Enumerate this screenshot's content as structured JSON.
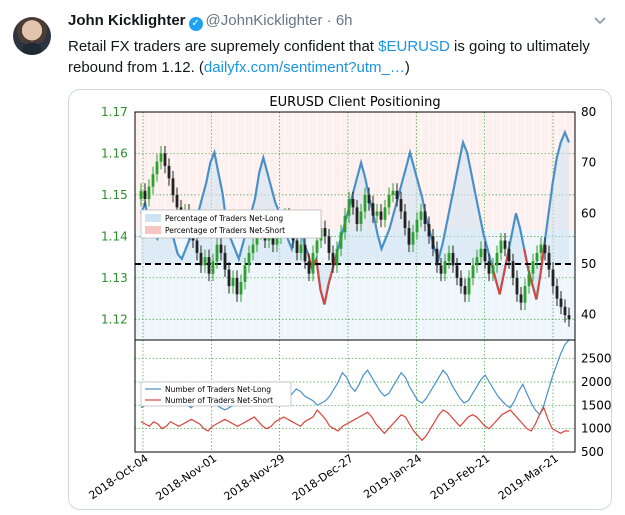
{
  "tweet": {
    "author_name": "John Kicklighter",
    "handle": "@JohnKicklighter",
    "separator": "·",
    "time": "6h",
    "text_before": "Retail FX traders are supremely confident that ",
    "cashtag": "$EURUSD",
    "text_after": " is going to ultimately rebound from 1.12. (",
    "link": "dailyfx.com/sentiment?utm_…",
    "text_end": ")"
  },
  "icons": {
    "verified": "verified-badge-icon",
    "menu": "chevron-down-icon",
    "avatar": "profile-photo"
  },
  "colors": {
    "link": "#1b95e0",
    "net_long": "#4a90c8",
    "net_short": "#d9453b",
    "bull": "#2ca02c",
    "bear": "#222222"
  },
  "chart_data": [
    {
      "type": "line",
      "title": "EURUSD Client Positioning",
      "x_ticks": [
        "2018-Oct-04",
        "2018-Nov-01",
        "2018-Nov-29",
        "2018-Dec-27",
        "2019-Jan-24",
        "2019-Feb-21",
        "2019-Mar-21"
      ],
      "y_left_ticks": [
        "1.17",
        "1.16",
        "1.15",
        "1.14",
        "1.13",
        "1.12"
      ],
      "y_right_ticks": [
        "80",
        "70",
        "60",
        "50",
        "40"
      ],
      "ylim_left": [
        1.115,
        1.17
      ],
      "ylim_right": [
        35,
        80
      ],
      "reference_line": 50,
      "legend": [
        "Percentage of Traders Net-Long",
        "Percentage of Traders Net-Short"
      ],
      "legend_position": "center-left",
      "price_candles_close": [
        1.151,
        1.149,
        1.152,
        1.155,
        1.158,
        1.16,
        1.157,
        1.154,
        1.15,
        1.147,
        1.144,
        1.146,
        1.141,
        1.139,
        1.136,
        1.133,
        1.135,
        1.131,
        1.134,
        1.138,
        1.136,
        1.132,
        1.128,
        1.13,
        1.126,
        1.129,
        1.133,
        1.136,
        1.138,
        1.141,
        1.143,
        1.139,
        1.142,
        1.138,
        1.14,
        1.143,
        1.145,
        1.142,
        1.139,
        1.136,
        1.138,
        1.134,
        1.131,
        1.136,
        1.139,
        1.142,
        1.14,
        1.136,
        1.133,
        1.137,
        1.141,
        1.145,
        1.149,
        1.147,
        1.143,
        1.146,
        1.15,
        1.148,
        1.145,
        1.146,
        1.144,
        1.147,
        1.15,
        1.151,
        1.149,
        1.146,
        1.142,
        1.138,
        1.141,
        1.144,
        1.146,
        1.143,
        1.14,
        1.137,
        1.133,
        1.131,
        1.134,
        1.136,
        1.133,
        1.13,
        1.128,
        1.126,
        1.13,
        1.133,
        1.135,
        1.137,
        1.134,
        1.131,
        1.133,
        1.136,
        1.139,
        1.137,
        1.134,
        1.13,
        1.126,
        1.124,
        1.128,
        1.131,
        1.134,
        1.136,
        1.138,
        1.136,
        1.132,
        1.128,
        1.125,
        1.123,
        1.121,
        1.12
      ],
      "percent_net_long": [
        60,
        62,
        58,
        56,
        55,
        58,
        60,
        57,
        55,
        52,
        51,
        53,
        55,
        57,
        60,
        63,
        66,
        70,
        72,
        68,
        64,
        58,
        55,
        53,
        51,
        54,
        57,
        60,
        63,
        68,
        71,
        68,
        65,
        62,
        60,
        58,
        55,
        53,
        57,
        59,
        54,
        52,
        49,
        51,
        45,
        42,
        46,
        49,
        52,
        55,
        58,
        61,
        64,
        67,
        70,
        67,
        63,
        60,
        56,
        53,
        55,
        57,
        60,
        63,
        66,
        69,
        72,
        69,
        66,
        63,
        59,
        56,
        53,
        51,
        54,
        58,
        62,
        66,
        70,
        74,
        72,
        68,
        64,
        60,
        56,
        53,
        50,
        47,
        44,
        48,
        52,
        56,
        60,
        57,
        53,
        49,
        46,
        43,
        48,
        54,
        60,
        66,
        71,
        74,
        76,
        74
      ],
      "series": [
        {
          "name": "Percentage of Traders Net-Long",
          "color": "#4a90c8"
        },
        {
          "name": "Percentage of Traders Net-Short",
          "color": "#d9453b"
        }
      ]
    },
    {
      "type": "line",
      "y_ticks": [
        "2500",
        "2000",
        "1500",
        "1000",
        "500"
      ],
      "ylim": [
        500,
        2900
      ],
      "legend": [
        "Number of Traders Net-Long",
        "Number of Traders Net-Short"
      ],
      "legend_position": "top-left",
      "series": [
        {
          "name": "Number of Traders Net-Long",
          "color": "#4a90c8",
          "values": [
            1450,
            1500,
            1550,
            1500,
            1700,
            1650,
            1550,
            1500,
            1600,
            1700,
            1650,
            1500,
            1450,
            1550,
            1600,
            1700,
            1750,
            1650,
            1500,
            1450,
            1400,
            1450,
            1500,
            1650,
            1800,
            1750,
            1600,
            1550,
            1650,
            1900,
            1800,
            1700,
            1600,
            1550,
            1500,
            1650,
            1750,
            1850,
            1800,
            1700,
            1650,
            1600,
            1500,
            1550,
            1600,
            1700,
            1850,
            2000,
            2200,
            2100,
            1900,
            1800,
            1950,
            2150,
            2250,
            2100,
            1950,
            1800,
            1700,
            1750,
            1900,
            2050,
            2200,
            2100,
            1900,
            1750,
            1600,
            1550,
            1650,
            1800,
            1950,
            2100,
            2250,
            2150,
            1950,
            1800,
            1650,
            1550,
            1600,
            1750,
            1900,
            2050,
            2150,
            2000,
            1850,
            1700,
            1600,
            1500,
            1450,
            1600,
            1800,
            1950,
            1750,
            1550,
            1400,
            1300,
            1500,
            1800,
            2100,
            2350,
            2600,
            2800,
            2900
          ]
        },
        {
          "name": "Number of Traders Net-Short",
          "color": "#d9453b",
          "values": [
            1150,
            1100,
            1050,
            1150,
            1100,
            1000,
            1050,
            1150,
            1100,
            1050,
            1100,
            1150,
            1200,
            1150,
            1100,
            1000,
            950,
            1050,
            1100,
            1150,
            1200,
            1150,
            1100,
            1050,
            1100,
            1150,
            1200,
            1250,
            1150,
            1050,
            1000,
            1050,
            1150,
            1200,
            1250,
            1200,
            1150,
            1100,
            1050,
            1150,
            1200,
            1250,
            1400,
            1300,
            1200,
            1050,
            1000,
            950,
            1050,
            1100,
            1150,
            1200,
            1250,
            1300,
            1350,
            1250,
            1100,
            1000,
            900,
            1000,
            1100,
            1200,
            1300,
            1250,
            1100,
            950,
            850,
            750,
            850,
            1000,
            1150,
            1300,
            1400,
            1350,
            1250,
            1150,
            1050,
            1150,
            1250,
            1300,
            1250,
            1150,
            1050,
            1000,
            1100,
            1200,
            1300,
            1350,
            1400,
            1300,
            1200,
            1100,
            1000,
            950,
            1100,
            1300,
            1450,
            1200,
            1000,
            950,
            900,
            950,
            950
          ]
        }
      ]
    }
  ]
}
